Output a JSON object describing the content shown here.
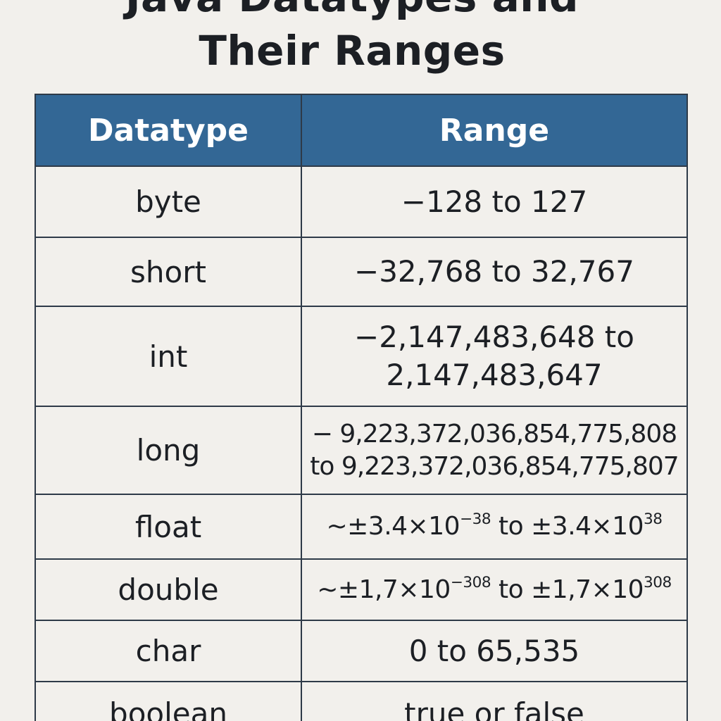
{
  "title": {
    "line1": "Java Datatypes and",
    "line2": "Their Ranges"
  },
  "table": {
    "headers": [
      "Datatype",
      "Range"
    ],
    "rows": [
      {
        "type": "byte",
        "range": "−128 to 127"
      },
      {
        "type": "short",
        "range": "−32,768 to 32,767"
      },
      {
        "type": "int",
        "range_line1": "−2,147,483,648 to",
        "range_line2": "2,147,483,647"
      },
      {
        "type": "long",
        "range_line1": "− 9,223,372,036,854,775,808",
        "range_line2": "to 9,223,372,036,854,775,807"
      },
      {
        "type": "float",
        "range_prefix": "~±3.4×10",
        "range_exp1": "−38",
        "range_mid": " to ±3.4×10",
        "range_exp2": "38"
      },
      {
        "type": "double",
        "range_prefix": "~±1,7×10",
        "range_exp1": "−308",
        "range_mid": " to ±1,7×10",
        "range_exp2": "308"
      },
      {
        "type": "char",
        "range": "0 to 65,535"
      },
      {
        "type": "boolean",
        "range": "true or false"
      }
    ]
  },
  "colors": {
    "header_bg": "#336795",
    "header_text": "#ffffff",
    "page_bg": "#f2f0ec",
    "border": "#2e3a48",
    "text": "#1c1f24"
  }
}
